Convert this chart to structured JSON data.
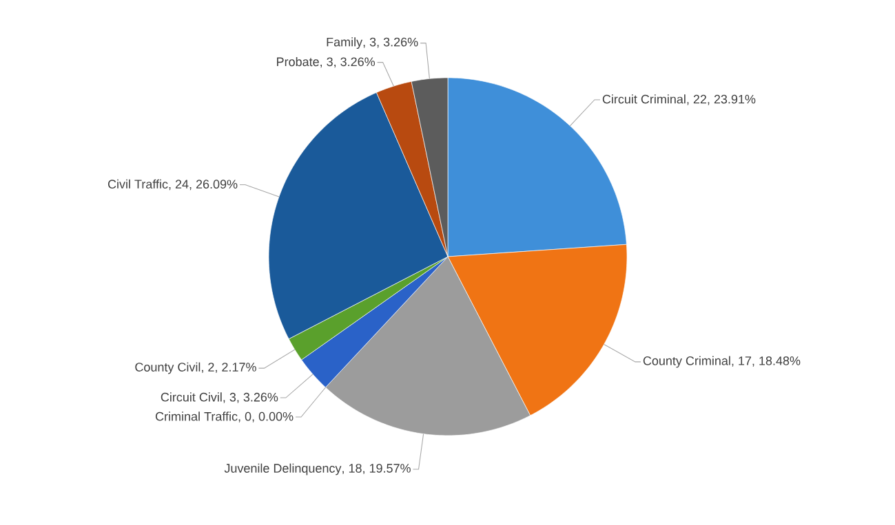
{
  "chart_data": {
    "type": "pie",
    "categories": [
      "Circuit Criminal",
      "County Criminal",
      "Juvenile Delinquency",
      "Criminal Traffic",
      "Circuit Civil",
      "County Civil",
      "Civil Traffic",
      "Probate",
      "Family"
    ],
    "values": [
      22,
      17,
      18,
      0,
      3,
      2,
      24,
      3,
      3
    ],
    "value_labels": [
      ", 22, 23.91%",
      ", 17, 18.48%",
      ", 18, 19.57%",
      ", 0, 0.00%",
      ", 3, 3.26%",
      ", 2, 2.17%",
      ", 24, 26.09%",
      ", 3, 3.26%",
      ", 3, 3.26%"
    ],
    "colors": [
      "#3f8fd9",
      "#f07414",
      "#9c9c9c",
      "#f5b800",
      "#2a62c8",
      "#5aa02c",
      "#1a5a9a",
      "#b84a10",
      "#5c5c5c"
    ]
  }
}
